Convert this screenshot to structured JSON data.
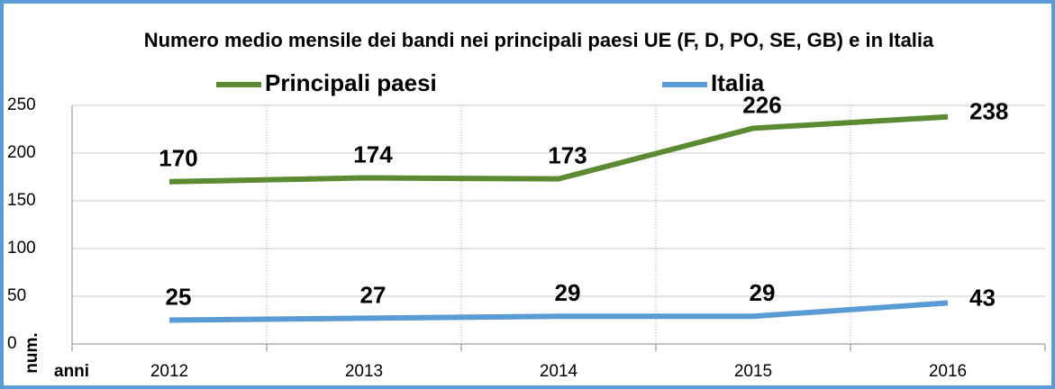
{
  "chart_data": {
    "type": "line",
    "title": "Numero medio mensile dei bandi nei principali paesi UE (F, D, PO, SE, GB) e in Italia",
    "x_label": "anni",
    "y_label": "num.",
    "categories": [
      "2012",
      "2013",
      "2014",
      "2015",
      "2016"
    ],
    "series": [
      {
        "name": "Principali paesi",
        "color": "#5b8a32",
        "values": [
          170,
          174,
          173,
          226,
          238
        ]
      },
      {
        "name": "Italia",
        "color": "#5b9bd5",
        "values": [
          25,
          27,
          29,
          29,
          43
        ]
      }
    ],
    "ylim": [
      0,
      250
    ],
    "yticks": [
      0,
      50,
      100,
      150,
      200,
      250
    ],
    "grid": true
  }
}
